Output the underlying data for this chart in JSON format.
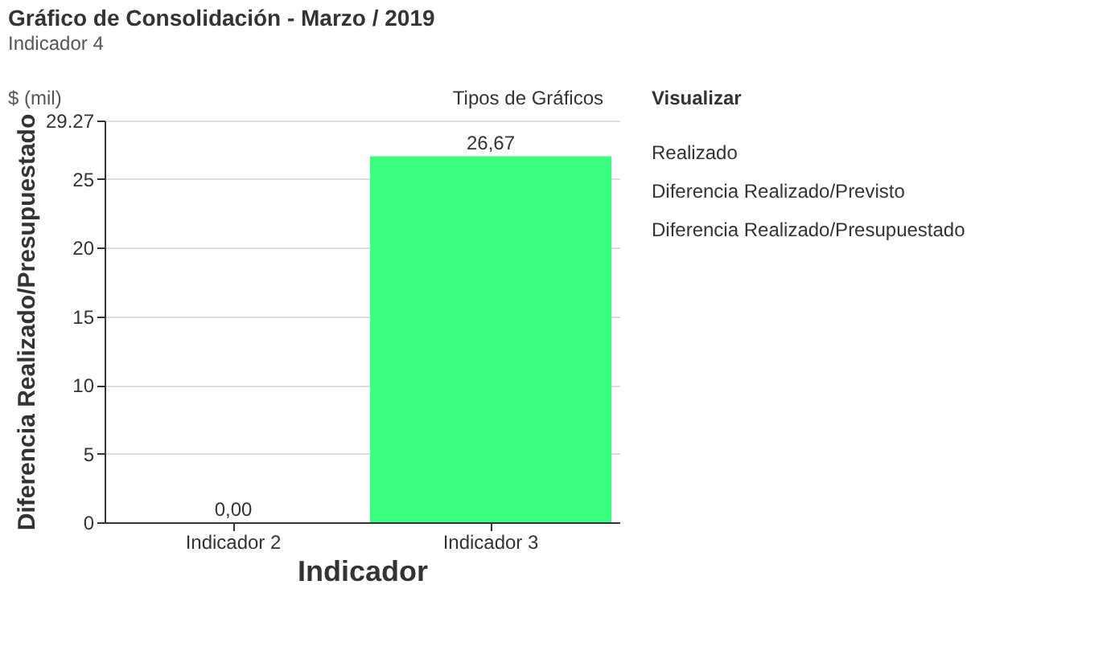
{
  "chart_data": {
    "type": "bar",
    "title": "Gráfico de Consolidación - Marzo / 2019",
    "subtitle": "Indicador 4",
    "xlabel": "Indicador",
    "ylabel": "Diferencia Realizado/Presupuestado",
    "annotations": [
      "$ (mil)",
      "Tipos de Gráficos",
      "Visualizar",
      "Realizado",
      "Diferencia Realizado/Previsto",
      "Diferencia Realizado/Presupuestado"
    ],
    "categories": [
      "Indicador 2",
      "Indicador 3"
    ],
    "series": [
      {
        "color": "#3bff80",
        "values": [
          0.0,
          26.67
        ],
        "value_labels": [
          "0,00",
          "26,67"
        ]
      }
    ],
    "ylim": [
      0,
      29.27
    ],
    "yticks": [
      0,
      5,
      10,
      15,
      20,
      25,
      29.27
    ],
    "grid": "y"
  }
}
